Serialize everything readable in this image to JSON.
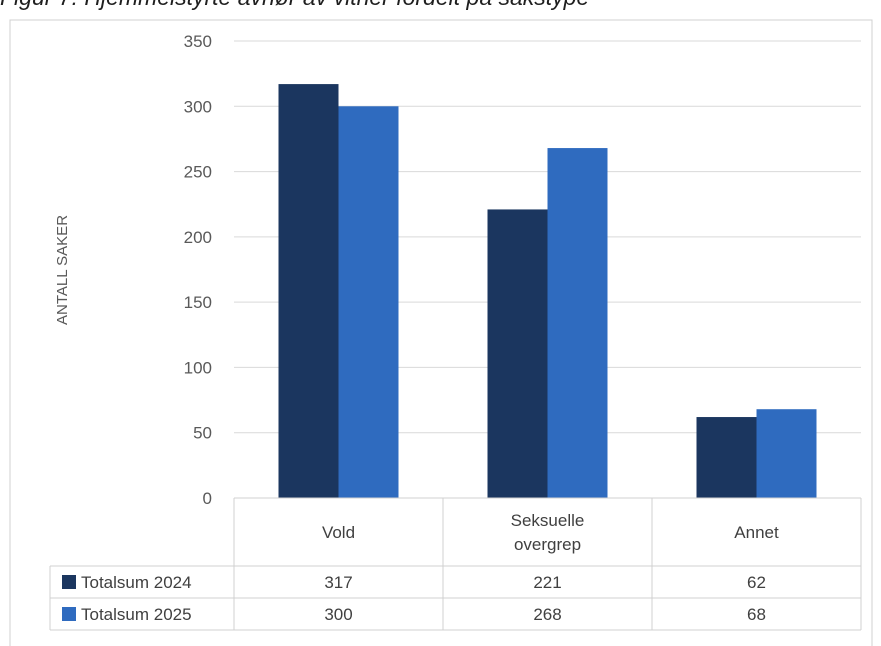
{
  "chart_data": {
    "type": "bar",
    "title": "Figur 7: Hjemmelstyrte avhør av vitner fordelt på sakstype",
    "ylabel": "ANTALL SAKER",
    "xlabel": "",
    "categories": [
      [
        "Vold"
      ],
      [
        "Seksuelle",
        "overgrep"
      ],
      [
        "Annet"
      ]
    ],
    "series": [
      {
        "name": "Totalsum 2024",
        "values": [
          317,
          221,
          62
        ],
        "color": "#1b365f"
      },
      {
        "name": "Totalsum 2025",
        "values": [
          300,
          268,
          68
        ],
        "color": "#2f6bbf"
      }
    ],
    "ylim": [
      0,
      350
    ],
    "yticks": [
      0,
      50,
      100,
      150,
      200,
      250,
      300,
      350
    ],
    "grid": true,
    "legend": "data-table"
  }
}
